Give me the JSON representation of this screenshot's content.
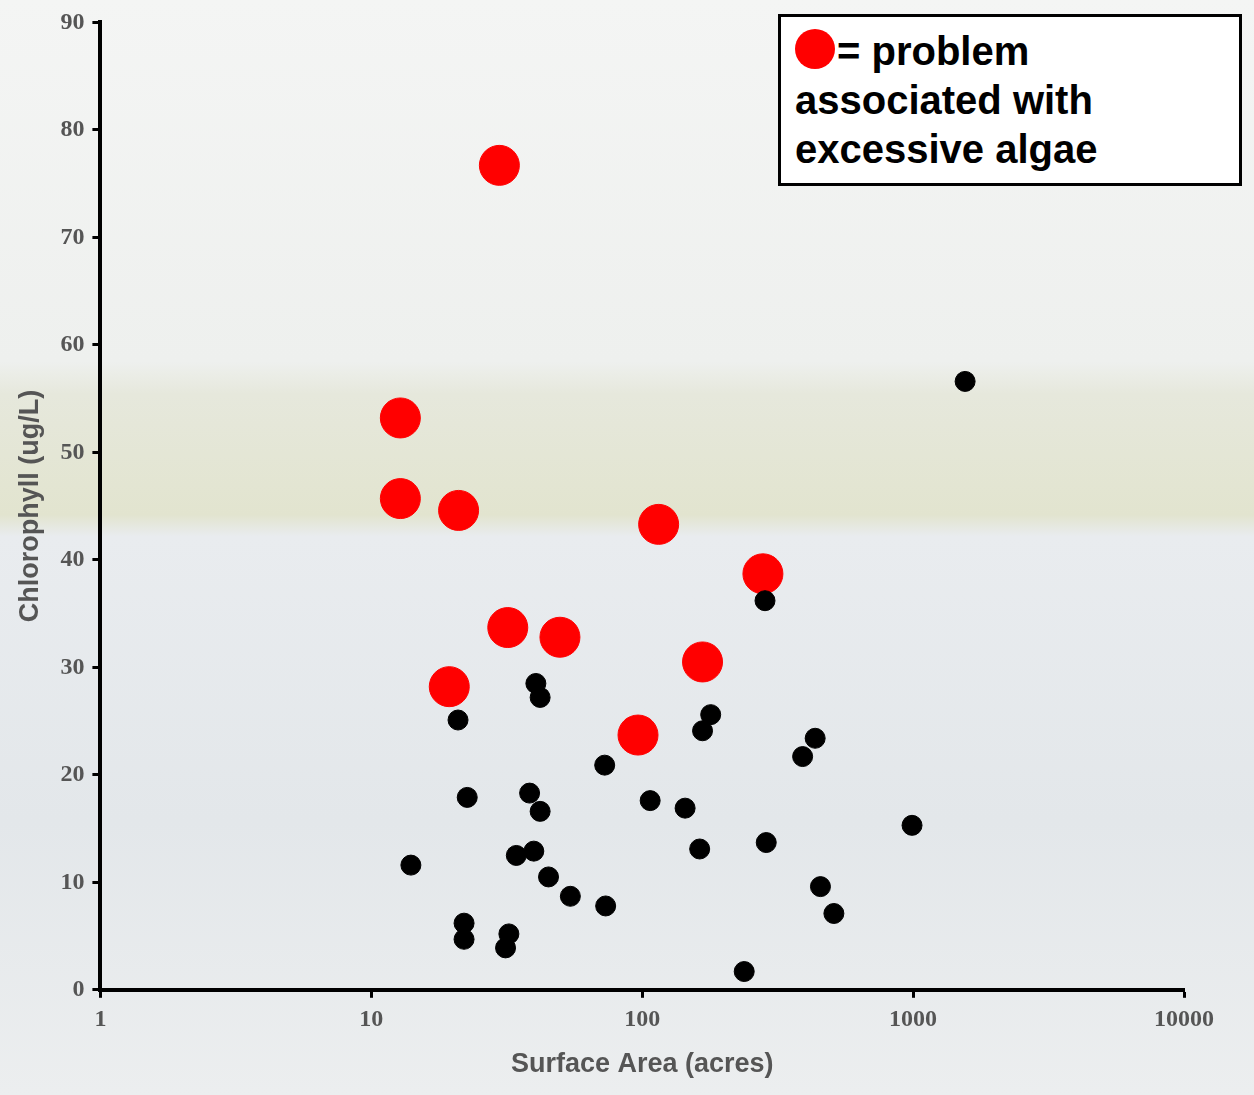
{
  "chart_data": {
    "type": "scatter",
    "x_label": "Surface Area (acres)",
    "y_label": "Chlorophyll (ug/L)",
    "log": "x",
    "xlim": [
      1,
      10000
    ],
    "xticks": [
      1,
      10,
      100,
      1000,
      10000
    ],
    "ylim": [
      0,
      90
    ],
    "yticks": [
      0,
      10,
      20,
      30,
      40,
      50,
      60,
      70,
      80,
      90
    ],
    "grid": false,
    "legend": "upper right",
    "series": [
      {
        "color": "#000000",
        "marker": "circle",
        "x": [
          1556,
          284,
          20.9,
          40.5,
          42.0,
          179,
          167,
          435,
          391,
          72.7,
          22.6,
          38.4,
          42.0,
          107,
          144,
          991,
          163,
          287,
          39.8,
          34.3,
          14.0,
          45.1,
          54.3,
          73.3,
          455,
          510,
          22.0,
          22.0,
          32.2,
          31.3,
          238
        ],
        "values": [
          56.6,
          36.2,
          25.1,
          28.5,
          27.2,
          25.6,
          24.1,
          23.4,
          21.7,
          20.9,
          17.9,
          18.3,
          16.6,
          17.6,
          16.9,
          15.3,
          13.1,
          13.7,
          12.9,
          12.5,
          11.6,
          10.5,
          8.7,
          7.8,
          9.6,
          7.1,
          6.2,
          4.7,
          5.2,
          3.9,
          1.7
        ]
      },
      {
        "name": "= problem associated with excessive algae",
        "color": "#ff0000",
        "marker": "circle",
        "x": [
          29.7,
          12.8,
          12.8,
          21.0,
          115,
          279,
          31.9,
          49.7,
          167,
          19.4,
          96.5
        ],
        "values": [
          76.7,
          53.2,
          45.7,
          44.6,
          43.3,
          38.7,
          33.7,
          32.8,
          30.5,
          28.2,
          23.7
        ]
      }
    ]
  }
}
